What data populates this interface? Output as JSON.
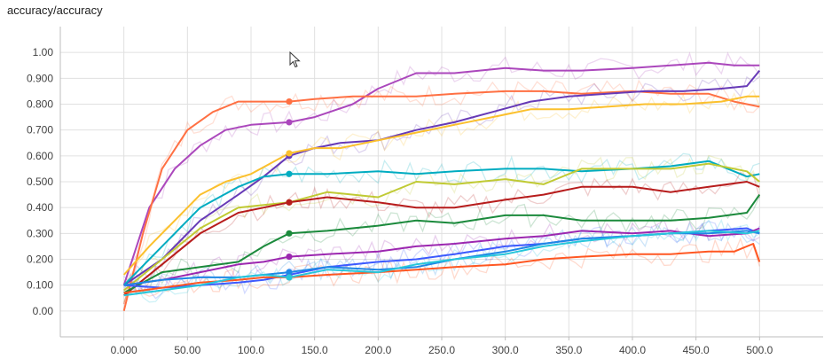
{
  "header": {
    "title": "accuracy/accuracy"
  },
  "colors": {
    "grid": "#e0e0e0",
    "axis": "#bdbdbd",
    "series": [
      "#ab47bc",
      "#ff7043",
      "#673ab7",
      "#fbc02d",
      "#00acc1",
      "#c0ca33",
      "#b71c1c",
      "#1b8a3c",
      "#3d5afe",
      "#9c27b0",
      "#1e88e5",
      "#ff5722",
      "#26c6da"
    ]
  },
  "chart_data": {
    "type": "line",
    "title": "accuracy/accuracy",
    "xlabel": "",
    "ylabel": "",
    "xlim": [
      -50,
      550
    ],
    "ylim": [
      -0.1,
      1.1
    ],
    "grid": true,
    "x_ticks": [
      {
        "value": 0,
        "label": "0.000"
      },
      {
        "value": 50,
        "label": "50.00"
      },
      {
        "value": 100,
        "label": "100.0"
      },
      {
        "value": 150,
        "label": "150.0"
      },
      {
        "value": 200,
        "label": "200.0"
      },
      {
        "value": 250,
        "label": "250.0"
      },
      {
        "value": 300,
        "label": "300.0"
      },
      {
        "value": 350,
        "label": "350.0"
      },
      {
        "value": 400,
        "label": "400.0"
      },
      {
        "value": 450,
        "label": "450.0"
      },
      {
        "value": 500,
        "label": "500.0"
      }
    ],
    "y_ticks": [
      {
        "value": 0.0,
        "label": "0.00"
      },
      {
        "value": 0.1,
        "label": "0.100"
      },
      {
        "value": 0.2,
        "label": "0.200"
      },
      {
        "value": 0.3,
        "label": "0.300"
      },
      {
        "value": 0.4,
        "label": "0.400"
      },
      {
        "value": 0.5,
        "label": "0.500"
      },
      {
        "value": 0.6,
        "label": "0.600"
      },
      {
        "value": 0.7,
        "label": "0.700"
      },
      {
        "value": 0.8,
        "label": "0.800"
      },
      {
        "value": 0.9,
        "label": "0.900"
      },
      {
        "value": 1.0,
        "label": "1.00"
      }
    ],
    "highlight_x": 130,
    "series": [
      {
        "color": "#ab47bc",
        "x": [
          0,
          20,
          40,
          60,
          80,
          100,
          130,
          150,
          180,
          200,
          230,
          260,
          300,
          330,
          360,
          400,
          430,
          460,
          480,
          500
        ],
        "y": [
          0.1,
          0.4,
          0.55,
          0.64,
          0.7,
          0.72,
          0.73,
          0.75,
          0.8,
          0.86,
          0.92,
          0.92,
          0.94,
          0.93,
          0.93,
          0.94,
          0.95,
          0.96,
          0.95,
          0.95
        ]
      },
      {
        "color": "#ff7043",
        "x": [
          0,
          15,
          30,
          50,
          70,
          90,
          110,
          130,
          150,
          180,
          200,
          230,
          260,
          300,
          330,
          360,
          400,
          430,
          460,
          480,
          500
        ],
        "y": [
          0.0,
          0.3,
          0.55,
          0.7,
          0.77,
          0.81,
          0.81,
          0.81,
          0.82,
          0.83,
          0.83,
          0.83,
          0.84,
          0.85,
          0.85,
          0.84,
          0.85,
          0.84,
          0.84,
          0.81,
          0.79
        ]
      },
      {
        "color": "#673ab7",
        "x": [
          0,
          30,
          60,
          90,
          110,
          130,
          150,
          170,
          200,
          230,
          260,
          290,
          320,
          350,
          380,
          410,
          440,
          470,
          490,
          500
        ],
        "y": [
          0.1,
          0.2,
          0.35,
          0.45,
          0.52,
          0.6,
          0.63,
          0.65,
          0.66,
          0.7,
          0.73,
          0.77,
          0.81,
          0.83,
          0.84,
          0.85,
          0.85,
          0.86,
          0.87,
          0.93
        ]
      },
      {
        "color": "#fbc02d",
        "x": [
          0,
          20,
          40,
          60,
          80,
          100,
          130,
          150,
          170,
          200,
          230,
          260,
          290,
          320,
          350,
          380,
          410,
          440,
          470,
          490,
          500
        ],
        "y": [
          0.14,
          0.25,
          0.35,
          0.45,
          0.5,
          0.53,
          0.61,
          0.63,
          0.63,
          0.66,
          0.69,
          0.72,
          0.75,
          0.78,
          0.78,
          0.79,
          0.8,
          0.8,
          0.81,
          0.83,
          0.83
        ]
      },
      {
        "color": "#00acc1",
        "x": [
          0,
          30,
          60,
          90,
          110,
          130,
          160,
          200,
          230,
          260,
          300,
          330,
          360,
          400,
          430,
          460,
          490,
          500
        ],
        "y": [
          0.1,
          0.25,
          0.4,
          0.48,
          0.52,
          0.53,
          0.53,
          0.54,
          0.53,
          0.54,
          0.55,
          0.55,
          0.54,
          0.55,
          0.56,
          0.58,
          0.52,
          0.53
        ]
      },
      {
        "color": "#c0ca33",
        "x": [
          0,
          30,
          60,
          90,
          110,
          130,
          160,
          200,
          230,
          260,
          300,
          330,
          360,
          400,
          430,
          460,
          490,
          500
        ],
        "y": [
          0.08,
          0.2,
          0.32,
          0.4,
          0.41,
          0.42,
          0.46,
          0.44,
          0.5,
          0.49,
          0.51,
          0.49,
          0.55,
          0.55,
          0.55,
          0.57,
          0.54,
          0.5
        ]
      },
      {
        "color": "#b71c1c",
        "x": [
          0,
          30,
          60,
          90,
          110,
          130,
          160,
          200,
          230,
          260,
          300,
          330,
          360,
          400,
          430,
          460,
          490,
          500
        ],
        "y": [
          0.06,
          0.18,
          0.3,
          0.38,
          0.4,
          0.42,
          0.44,
          0.42,
          0.4,
          0.4,
          0.43,
          0.45,
          0.48,
          0.48,
          0.46,
          0.48,
          0.5,
          0.48
        ]
      },
      {
        "color": "#1b8a3c",
        "x": [
          0,
          30,
          60,
          90,
          110,
          130,
          160,
          200,
          230,
          260,
          300,
          330,
          360,
          400,
          430,
          460,
          490,
          500
        ],
        "y": [
          0.07,
          0.15,
          0.17,
          0.19,
          0.25,
          0.3,
          0.31,
          0.33,
          0.35,
          0.34,
          0.37,
          0.37,
          0.35,
          0.35,
          0.35,
          0.36,
          0.38,
          0.45
        ]
      },
      {
        "color": "#3d5afe",
        "x": [
          0,
          30,
          60,
          90,
          110,
          130,
          160,
          200,
          230,
          260,
          300,
          330,
          360,
          400,
          430,
          460,
          490,
          500
        ],
        "y": [
          0.1,
          0.09,
          0.1,
          0.11,
          0.12,
          0.14,
          0.17,
          0.19,
          0.2,
          0.22,
          0.25,
          0.26,
          0.28,
          0.29,
          0.3,
          0.31,
          0.32,
          0.3
        ]
      },
      {
        "color": "#9c27b0",
        "x": [
          0,
          30,
          60,
          90,
          110,
          130,
          160,
          200,
          230,
          260,
          300,
          330,
          360,
          400,
          430,
          460,
          490,
          500
        ],
        "y": [
          0.1,
          0.12,
          0.15,
          0.18,
          0.19,
          0.21,
          0.22,
          0.23,
          0.25,
          0.26,
          0.28,
          0.29,
          0.31,
          0.3,
          0.31,
          0.29,
          0.3,
          0.32
        ]
      },
      {
        "color": "#1e88e5",
        "x": [
          0,
          30,
          60,
          90,
          110,
          130,
          160,
          200,
          230,
          260,
          300,
          330,
          360,
          400,
          430,
          460,
          490,
          500
        ],
        "y": [
          0.1,
          0.12,
          0.13,
          0.13,
          0.14,
          0.15,
          0.17,
          0.16,
          0.17,
          0.2,
          0.23,
          0.26,
          0.28,
          0.29,
          0.3,
          0.3,
          0.31,
          0.3
        ]
      },
      {
        "color": "#ff5722",
        "x": [
          0,
          30,
          60,
          90,
          110,
          130,
          160,
          200,
          230,
          260,
          300,
          330,
          360,
          400,
          430,
          460,
          480,
          495,
          500
        ],
        "y": [
          0.07,
          0.09,
          0.11,
          0.12,
          0.13,
          0.13,
          0.14,
          0.15,
          0.16,
          0.17,
          0.18,
          0.2,
          0.21,
          0.22,
          0.22,
          0.23,
          0.23,
          0.26,
          0.19
        ]
      },
      {
        "color": "#26c6da",
        "x": [
          0,
          30,
          60,
          90,
          110,
          130,
          160,
          200,
          230,
          260,
          300,
          330,
          360,
          400,
          430,
          460,
          490,
          500
        ],
        "y": [
          0.06,
          0.08,
          0.1,
          0.13,
          0.14,
          0.13,
          0.16,
          0.15,
          0.18,
          0.2,
          0.22,
          0.25,
          0.27,
          0.29,
          0.3,
          0.31,
          0.3,
          0.31
        ]
      }
    ]
  }
}
